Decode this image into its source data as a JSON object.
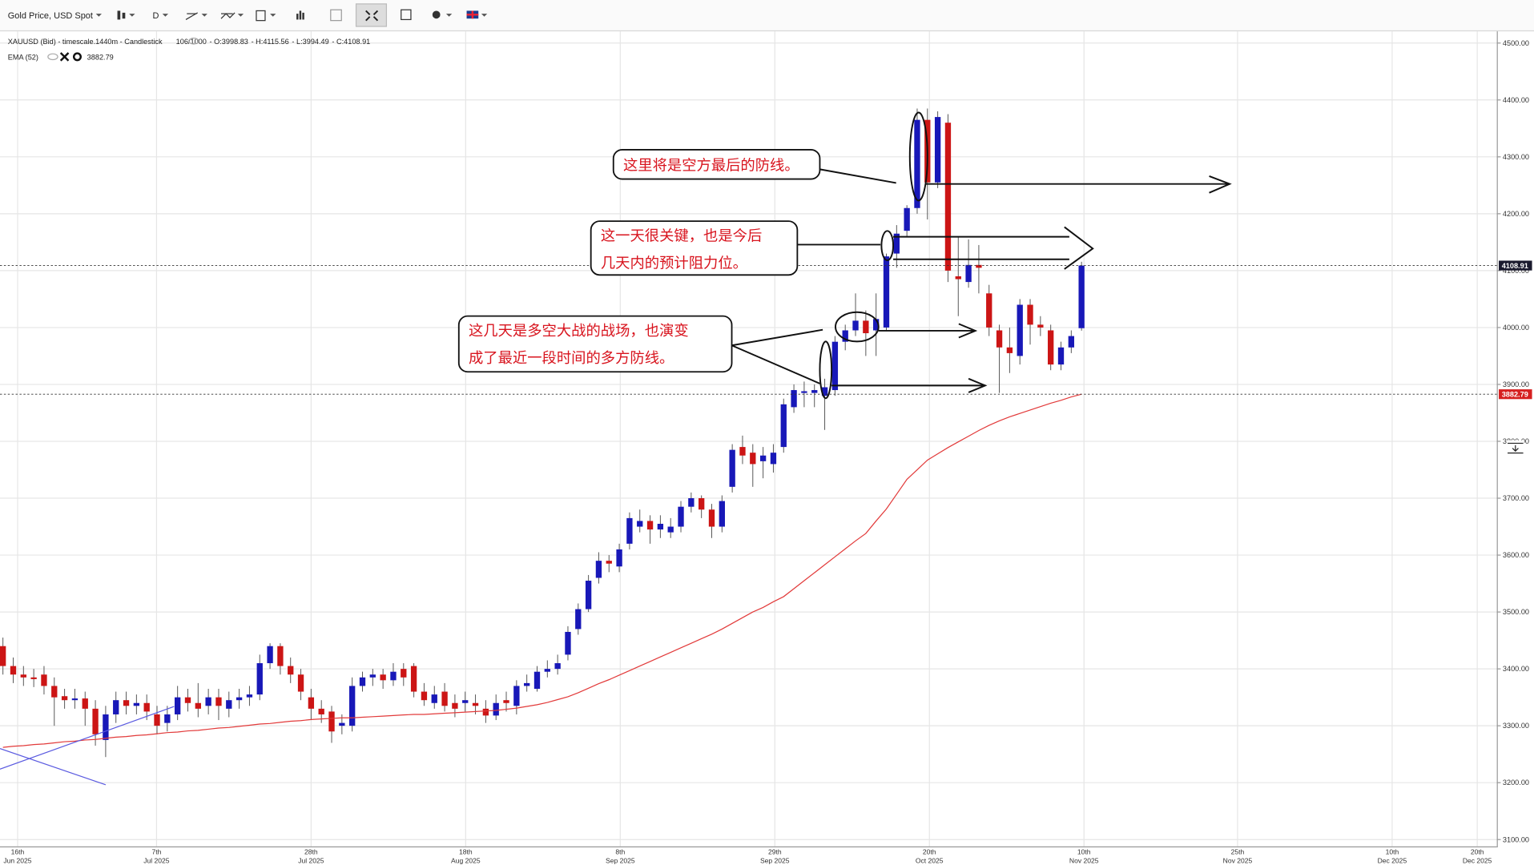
{
  "header": {
    "symbol": "Gold Price, USD Spot",
    "timeframe": "D",
    "info": "XAUUSD (Bid) - timescale.1440m - Candlestick",
    "count": "106/1000",
    "ohlc_prefixes": [
      "- O:",
      "- H:",
      "- L:",
      "- C:"
    ]
  },
  "chart_data": {
    "type": "candlestick",
    "open": [
      3440,
      3405,
      3390,
      3385,
      3390,
      3370,
      3352,
      3345,
      3348,
      3330,
      3275,
      3320,
      3345,
      3335,
      3340,
      3320,
      3305,
      3320,
      3350,
      3340,
      3335,
      3350,
      3330,
      3345,
      3350,
      3355,
      3410,
      3440,
      3405,
      3390,
      3350,
      3330,
      3325,
      3300,
      3300,
      3370,
      3385,
      3390,
      3380,
      3400,
      3405,
      3360,
      3340,
      3360,
      3340,
      3340,
      3340,
      3330,
      3318,
      3345,
      3335,
      3370,
      3365,
      3395,
      3400,
      3425,
      3470,
      3505,
      3560,
      3590,
      3580,
      3620,
      3650,
      3660,
      3645,
      3640,
      3650,
      3685,
      3700,
      3680,
      3650,
      3720,
      3790,
      3780,
      3765,
      3760,
      3790,
      3860,
      3885,
      3885,
      3880,
      3890,
      3975,
      3995,
      4012,
      3995,
      4000,
      4130,
      4170,
      4210,
      4365,
      4255,
      4360,
      4090,
      4080,
      4110,
      4060,
      3995,
      3965,
      3950,
      4040,
      4005,
      3995,
      3935,
      3965,
      3998.83
    ],
    "high": [
      3455,
      3420,
      3405,
      3400,
      3405,
      3385,
      3365,
      3365,
      3360,
      3345,
      3335,
      3360,
      3360,
      3355,
      3355,
      3335,
      3335,
      3370,
      3365,
      3375,
      3365,
      3365,
      3360,
      3365,
      3370,
      3425,
      3445,
      3445,
      3420,
      3400,
      3365,
      3345,
      3335,
      3320,
      3385,
      3395,
      3400,
      3400,
      3410,
      3410,
      3410,
      3375,
      3370,
      3375,
      3355,
      3360,
      3355,
      3345,
      3355,
      3360,
      3380,
      3390,
      3405,
      3415,
      3425,
      3475,
      3515,
      3565,
      3605,
      3600,
      3620,
      3675,
      3680,
      3670,
      3670,
      3665,
      3695,
      3710,
      3705,
      3690,
      3705,
      3795,
      3810,
      3795,
      3790,
      3795,
      3875,
      3900,
      3905,
      3900,
      3910,
      3985,
      4005,
      4060,
      4030,
      4060,
      4130,
      4180,
      4215,
      4385,
      4385,
      4380,
      4375,
      4160,
      4155,
      4145,
      4075,
      4005,
      4000,
      4050,
      4050,
      4020,
      4005,
      3975,
      3995,
      4115.56
    ],
    "low": [
      3390,
      3375,
      3370,
      3368,
      3355,
      3300,
      3330,
      3330,
      3300,
      3265,
      3245,
      3305,
      3320,
      3320,
      3310,
      3285,
      3290,
      3310,
      3325,
      3315,
      3320,
      3310,
      3315,
      3330,
      3335,
      3345,
      3400,
      3390,
      3375,
      3345,
      3310,
      3305,
      3270,
      3285,
      3290,
      3360,
      3370,
      3365,
      3370,
      3370,
      3350,
      3335,
      3330,
      3325,
      3315,
      3325,
      3320,
      3305,
      3310,
      3325,
      3320,
      3360,
      3360,
      3385,
      3390,
      3415,
      3460,
      3500,
      3550,
      3570,
      3570,
      3610,
      3640,
      3620,
      3630,
      3630,
      3640,
      3675,
      3665,
      3630,
      3640,
      3710,
      3760,
      3720,
      3735,
      3745,
      3780,
      3850,
      3860,
      3860,
      3820,
      3880,
      3960,
      3985,
      3950,
      3950,
      3995,
      4105,
      4160,
      4200,
      4190,
      4245,
      4080,
      4020,
      4070,
      4060,
      3985,
      3885,
      3920,
      3935,
      3970,
      3985,
      3925,
      3925,
      3955,
      3994.49
    ],
    "close": [
      3405,
      3390,
      3385,
      3382,
      3370,
      3350,
      3345,
      3348,
      3330,
      3285,
      3320,
      3345,
      3335,
      3340,
      3325,
      3300,
      3320,
      3350,
      3340,
      3330,
      3350,
      3335,
      3345,
      3350,
      3355,
      3410,
      3440,
      3405,
      3390,
      3360,
      3330,
      3320,
      3290,
      3305,
      3370,
      3385,
      3390,
      3380,
      3395,
      3385,
      3360,
      3345,
      3355,
      3335,
      3330,
      3345,
      3335,
      3318,
      3340,
      3340,
      3370,
      3375,
      3395,
      3400,
      3410,
      3465,
      3505,
      3555,
      3590,
      3585,
      3610,
      3665,
      3660,
      3645,
      3655,
      3650,
      3685,
      3700,
      3680,
      3650,
      3695,
      3785,
      3775,
      3760,
      3775,
      3780,
      3865,
      3890,
      3888,
      3890,
      3895,
      3975,
      3995,
      4012,
      3990,
      4015,
      4125,
      4165,
      4210,
      4365,
      4255,
      4370,
      4100,
      4085,
      4110,
      4105,
      4000,
      3965,
      3955,
      4040,
      4005,
      4000,
      3935,
      3965,
      3985,
      4108.91
    ],
    "colors": {
      "up": "#1818b8",
      "down": "#cc1515"
    },
    "ema": {
      "name": "EMA (52)",
      "color": "#e23a3a",
      "values": [
        3262,
        3264,
        3265,
        3267,
        3268,
        3270,
        3272,
        3273,
        3275,
        3276,
        3278,
        3280,
        3281,
        3283,
        3284,
        3286,
        3288,
        3289,
        3291,
        3292,
        3294,
        3296,
        3297,
        3299,
        3301,
        3303,
        3304,
        3306,
        3308,
        3309,
        3311,
        3312,
        3313,
        3314,
        3314,
        3315,
        3316,
        3317,
        3318,
        3319,
        3320,
        3320,
        3321,
        3322,
        3323,
        3324,
        3325,
        3326,
        3327,
        3329,
        3331,
        3334,
        3337,
        3341,
        3346,
        3351,
        3358,
        3366,
        3374,
        3381,
        3389,
        3397,
        3405,
        3413,
        3421,
        3429,
        3437,
        3445,
        3453,
        3461,
        3470,
        3480,
        3490,
        3500,
        3508,
        3518,
        3527,
        3541,
        3555,
        3569,
        3583,
        3597,
        3611,
        3625,
        3638,
        3660,
        3681,
        3707,
        3733,
        3750,
        3767,
        3778,
        3789,
        3799,
        3809,
        3819,
        3828,
        3836,
        3843,
        3849,
        3855,
        3861,
        3867,
        3872,
        3878,
        3882.79
      ]
    },
    "ylim": [
      3100,
      4500
    ],
    "yticks": [
      {
        "value": 3100,
        "label": "3100.00"
      },
      {
        "value": 3200,
        "label": "3200.00"
      },
      {
        "value": 3300,
        "label": "3300.00"
      },
      {
        "value": 3400,
        "label": "3400.00"
      },
      {
        "value": 3500,
        "label": "3500.00"
      },
      {
        "value": 3600,
        "label": "3600.00"
      },
      {
        "value": 3700,
        "label": "3700.00"
      },
      {
        "value": 3800,
        "label": "3800.00"
      },
      {
        "value": 3900,
        "label": "3900.00"
      },
      {
        "value": 4000,
        "label": "4000.00"
      },
      {
        "value": 4100,
        "label": "4100.00"
      },
      {
        "value": 4200,
        "label": "4200.00"
      },
      {
        "value": 4300,
        "label": "4300.00"
      },
      {
        "value": 4400,
        "label": "4400.00"
      },
      {
        "value": 4500,
        "label": "4500.00"
      }
    ],
    "x_labels": [
      [
        "16th",
        "Jun 2025"
      ],
      [
        "7th",
        "Jul 2025"
      ],
      [
        "28th",
        "Jul 2025"
      ],
      [
        "18th",
        "Aug 2025"
      ],
      [
        "8th",
        "Sep 2025"
      ],
      [
        "29th",
        "Sep 2025"
      ],
      [
        "20th",
        "Oct 2025"
      ],
      [
        "10th",
        "Nov 2025"
      ],
      [
        "25th",
        "Nov 2025"
      ],
      [
        "10th",
        "Dec 2025"
      ],
      [
        "20th",
        "Dec 2025"
      ]
    ],
    "grid": true
  },
  "annotations": [
    {
      "lines": [
        "这里将是空方最后的防线。"
      ]
    },
    {
      "lines": [
        "这一天很关键，也是今后",
        "几天内的预计阻力位。"
      ]
    },
    {
      "lines": [
        "这几天是多空大战的战场，也演变",
        "成了最近一段时间的多方防线。"
      ]
    }
  ]
}
